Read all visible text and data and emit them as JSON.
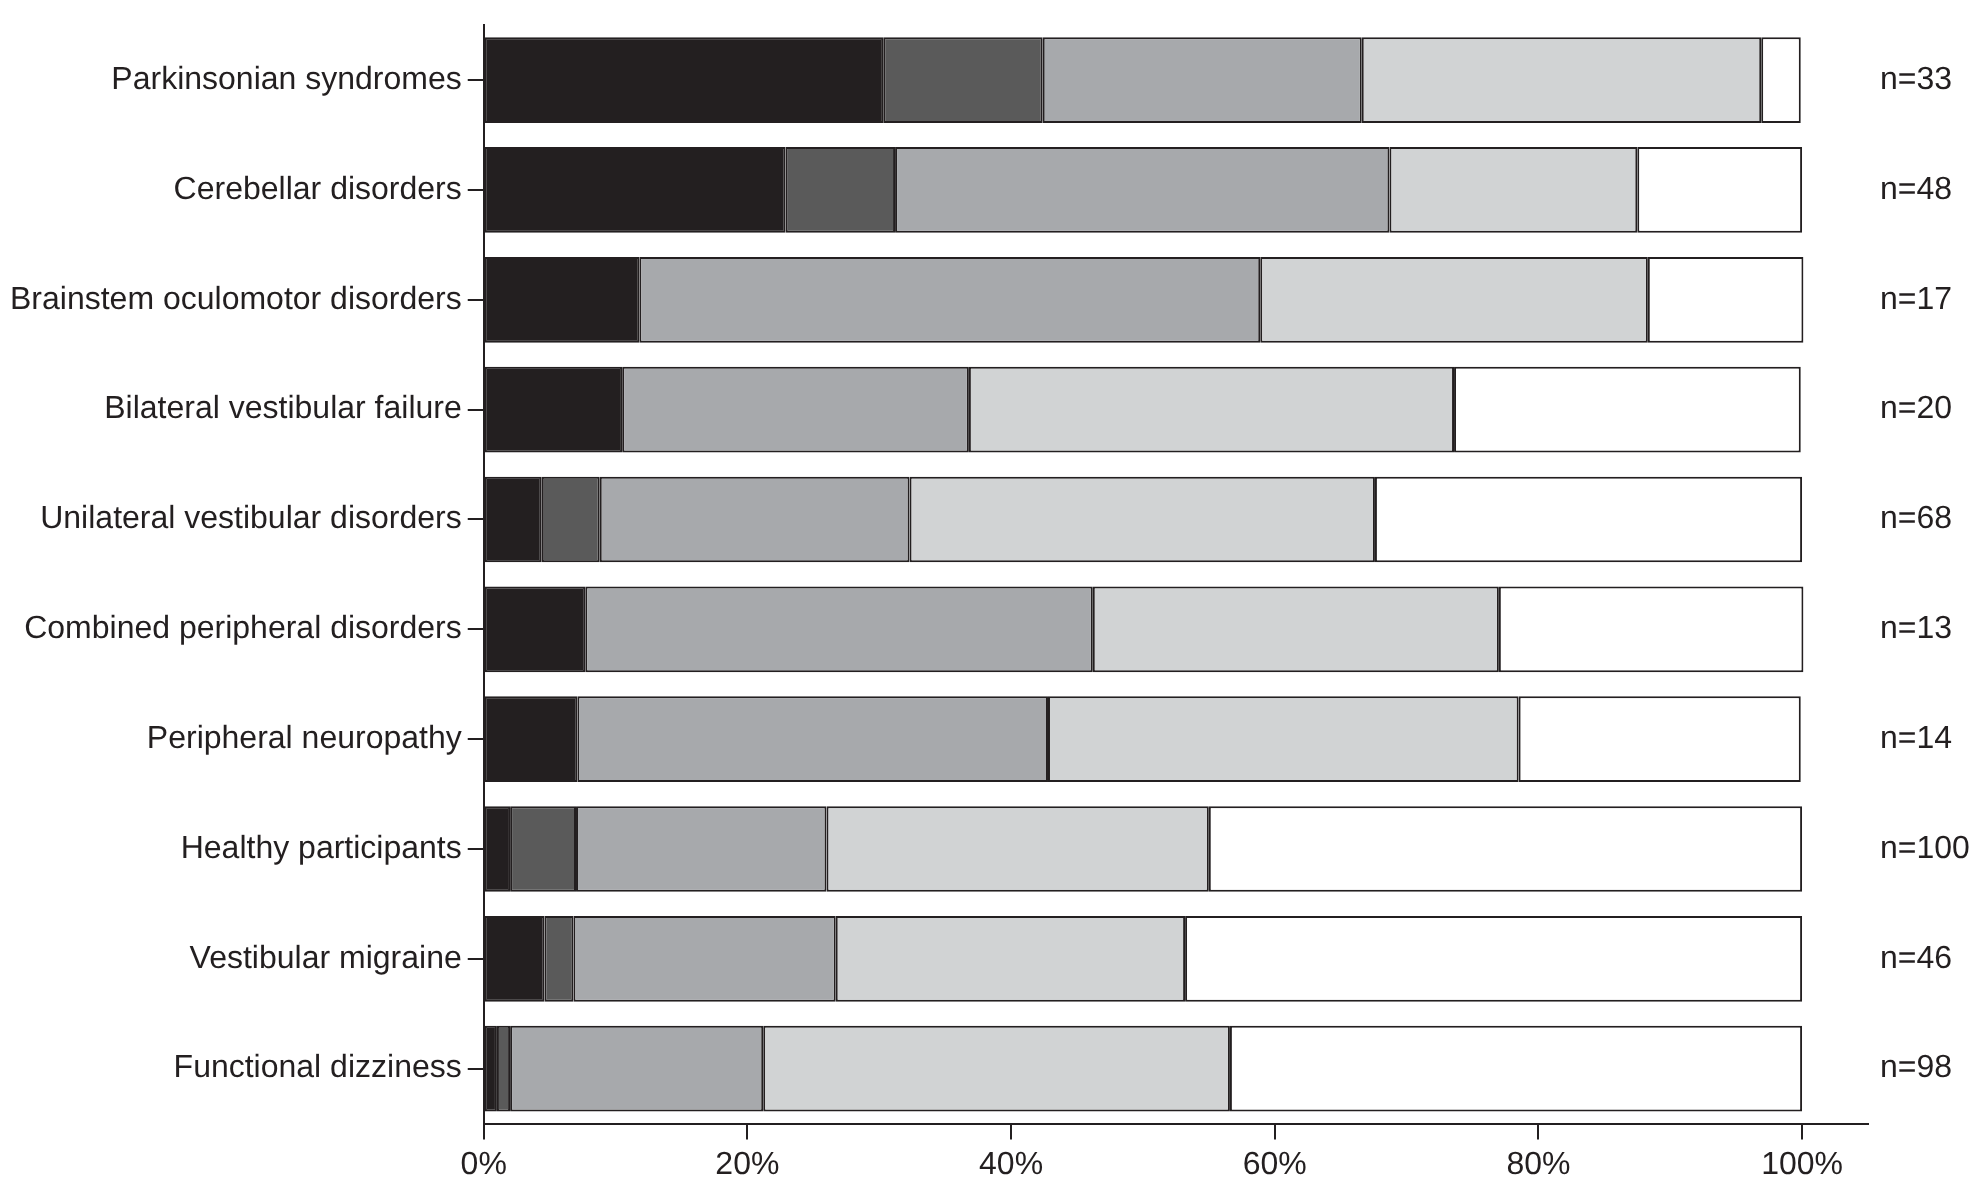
{
  "chart_data": {
    "type": "bar",
    "orientation": "horizontal",
    "stacked": true,
    "grid": false,
    "legend": false,
    "categories": [
      "Parkinsonian syndromes",
      "Cerebellar disorders",
      "Brainstem oculomotor disorders",
      "Bilateral vestibular failure",
      "Unilateral vestibular disorders",
      "Combined peripheral disorders",
      "Peripheral neuropathy",
      "Healthy participants",
      "Vestibular migraine",
      "Functional dizziness"
    ],
    "series": [
      {
        "color": "#231f20",
        "values": [
          30.3,
          22.9,
          11.8,
          10.5,
          4.4,
          7.7,
          7.1,
          2,
          4.6,
          1
        ]
      },
      {
        "color": "#5a5a5a",
        "values": [
          12.1,
          8.3,
          0,
          0,
          4.4,
          0,
          0,
          5,
          2.2,
          1
        ]
      },
      {
        "color": "#a7a9ac",
        "values": [
          24.2,
          37.5,
          47.1,
          26.3,
          23.5,
          38.5,
          35.7,
          19,
          19.9,
          19.2
        ]
      },
      {
        "color": "#d1d3d4",
        "values": [
          30.3,
          18.8,
          29.4,
          36.8,
          35.3,
          30.8,
          35.7,
          29,
          26.5,
          35.4
        ]
      },
      {
        "color": "#ffffff",
        "values": [
          3,
          12.5,
          11.8,
          26.3,
          32.4,
          23.1,
          21.4,
          45,
          46.8,
          43.4
        ]
      }
    ],
    "xlim": [
      0,
      105
    ],
    "xticks": [
      {
        "value": 0,
        "label": "0%"
      },
      {
        "value": 20,
        "label": "20%"
      },
      {
        "value": 40,
        "label": "40%"
      },
      {
        "value": 60,
        "label": "60%"
      },
      {
        "value": 80,
        "label": "80%"
      },
      {
        "value": 100,
        "label": "100%"
      }
    ],
    "annotations": [
      "n=33",
      "n=48",
      "n=17",
      "n=20",
      "n=68",
      "n=13",
      "n=14",
      "n=100",
      "n=46",
      "n=98"
    ]
  }
}
